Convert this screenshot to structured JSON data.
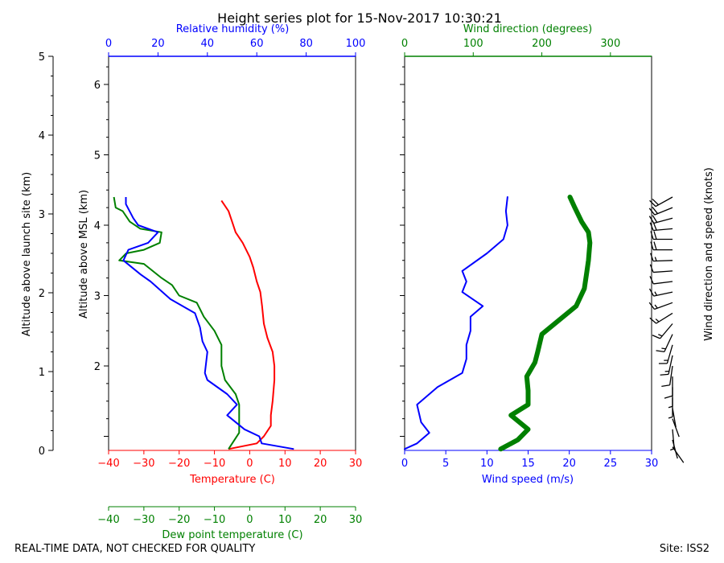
{
  "chart_data": {
    "type": "line",
    "title": "Height series plot for 15-Nov-2017 10:30:21",
    "site": "Site: ISS2",
    "disclaimer": "REAL-TIME DATA, NOT CHECKED FOR QUALITY",
    "colors": {
      "temperature": "#ff0000",
      "dewpoint": "#008000",
      "humidity": "#0000ff",
      "wind_speed": "#0000ff",
      "wind_direction": "#008000",
      "barbs": "#000000"
    },
    "left_panel": {
      "axes": {
        "temperature": {
          "label": "Temperature (C)",
          "range": [
            -40,
            30
          ],
          "ticks": [
            -40,
            -30,
            -20,
            -10,
            0,
            10,
            20,
            30
          ]
        },
        "dewpoint": {
          "label": "Dew point temperature (C)",
          "range": [
            -40,
            30
          ],
          "ticks": [
            -40,
            -30,
            -20,
            -10,
            0,
            10,
            20,
            30
          ]
        },
        "humidity": {
          "label": "Relative humidity (%)",
          "range": [
            0,
            100
          ],
          "ticks": [
            0,
            20,
            40,
            60,
            80,
            100
          ]
        },
        "altitude_msl": {
          "label": "Altitude above MSL (km)",
          "range": [
            0.8,
            6.4
          ],
          "ticks": [
            2,
            3,
            4,
            5,
            6
          ]
        },
        "altitude_site": {
          "label": "Altitude above launch site (km)",
          "range": [
            0,
            5
          ],
          "ticks": [
            0,
            1,
            2,
            3,
            4,
            5
          ]
        }
      },
      "series": [
        {
          "name": "Temperature",
          "x_axis": "temperature",
          "points": [
            [
              -8,
              4.35
            ],
            [
              -6,
              4.2
            ],
            [
              -5,
              4.05
            ],
            [
              -4,
              3.9
            ],
            [
              -2,
              3.75
            ],
            [
              0,
              3.55
            ],
            [
              1,
              3.4
            ],
            [
              2,
              3.2
            ],
            [
              3,
              3.05
            ],
            [
              3.5,
              2.85
            ],
            [
              4,
              2.6
            ],
            [
              5,
              2.4
            ],
            [
              6.5,
              2.2
            ],
            [
              7,
              2.0
            ],
            [
              7,
              1.8
            ],
            [
              6.5,
              1.5
            ],
            [
              6,
              1.3
            ],
            [
              6,
              1.15
            ],
            [
              4,
              1.0
            ],
            [
              2,
              0.9
            ],
            [
              -6,
              0.82
            ]
          ]
        },
        {
          "name": "Dew point",
          "x_axis": "dewpoint",
          "points": [
            [
              -38.5,
              4.4
            ],
            [
              -38,
              4.25
            ],
            [
              -36,
              4.2
            ],
            [
              -34,
              4.05
            ],
            [
              -31,
              3.95
            ],
            [
              -25,
              3.9
            ],
            [
              -25.5,
              3.75
            ],
            [
              -30,
              3.65
            ],
            [
              -35,
              3.6
            ],
            [
              -37,
              3.5
            ],
            [
              -30,
              3.45
            ],
            [
              -25,
              3.25
            ],
            [
              -22,
              3.15
            ],
            [
              -20,
              3.0
            ],
            [
              -15,
              2.9
            ],
            [
              -13,
              2.7
            ],
            [
              -10,
              2.5
            ],
            [
              -8,
              2.3
            ],
            [
              -8,
              2.0
            ],
            [
              -7,
              1.8
            ],
            [
              -4,
              1.6
            ],
            [
              -3,
              1.45
            ],
            [
              -3,
              1.2
            ],
            [
              -3,
              1.05
            ],
            [
              -6,
              0.82
            ]
          ]
        },
        {
          "name": "Relative humidity",
          "x_axis": "humidity",
          "points": [
            [
              7,
              4.4
            ],
            [
              7,
              4.3
            ],
            [
              10,
              4.1
            ],
            [
              12,
              4.0
            ],
            [
              20,
              3.9
            ],
            [
              16,
              3.75
            ],
            [
              8,
              3.65
            ],
            [
              6,
              3.5
            ],
            [
              13,
              3.3
            ],
            [
              17,
              3.2
            ],
            [
              25,
              2.95
            ],
            [
              35,
              2.75
            ],
            [
              37,
              2.55
            ],
            [
              38,
              2.35
            ],
            [
              40,
              2.2
            ],
            [
              39,
              1.9
            ],
            [
              40,
              1.8
            ],
            [
              48,
              1.6
            ],
            [
              52,
              1.45
            ],
            [
              48,
              1.3
            ],
            [
              55,
              1.1
            ],
            [
              61,
              1.0
            ],
            [
              62,
              0.9
            ],
            [
              75,
              0.82
            ]
          ]
        }
      ]
    },
    "right_panel": {
      "axes": {
        "wind_speed": {
          "label": "Wind speed (m/s)",
          "range": [
            0,
            30
          ],
          "ticks": [
            0,
            5,
            10,
            15,
            20,
            25,
            30
          ]
        },
        "wind_direction": {
          "label": "Wind direction (degrees)",
          "range": [
            0,
            360
          ],
          "ticks": [
            0,
            100,
            200,
            300
          ]
        },
        "barbs": {
          "label": "Wind direction and speed (knots)"
        }
      },
      "series": [
        {
          "name": "Wind speed",
          "x_axis": "wind_speed",
          "points": [
            [
              12.5,
              4.4
            ],
            [
              12.3,
              4.2
            ],
            [
              12.5,
              4.0
            ],
            [
              12,
              3.8
            ],
            [
              10,
              3.6
            ],
            [
              7,
              3.35
            ],
            [
              7.5,
              3.2
            ],
            [
              7,
              3.05
            ],
            [
              9.5,
              2.85
            ],
            [
              8,
              2.7
            ],
            [
              8,
              2.5
            ],
            [
              7.5,
              2.3
            ],
            [
              7.5,
              2.1
            ],
            [
              7,
              1.9
            ],
            [
              4,
              1.7
            ],
            [
              1.5,
              1.45
            ],
            [
              2,
              1.2
            ],
            [
              3,
              1.05
            ],
            [
              1.5,
              0.9
            ],
            [
              0,
              0.82
            ]
          ]
        },
        {
          "name": "Wind direction",
          "x_axis": "wind_direction",
          "points": [
            [
              241,
              4.4
            ],
            [
              248,
              4.25
            ],
            [
              258,
              4.05
            ],
            [
              268,
              3.9
            ],
            [
              270,
              3.75
            ],
            [
              268,
              3.5
            ],
            [
              265,
              3.3
            ],
            [
              262,
              3.1
            ],
            [
              250,
              2.85
            ],
            [
              225,
              2.65
            ],
            [
              200,
              2.45
            ],
            [
              194,
              2.2
            ],
            [
              190,
              2.05
            ],
            [
              178,
              1.85
            ],
            [
              180,
              1.65
            ],
            [
              180,
              1.45
            ],
            [
              155,
              1.3
            ],
            [
              180,
              1.1
            ],
            [
              165,
              0.95
            ],
            [
              140,
              0.82
            ]
          ]
        }
      ],
      "barbs": [
        {
          "alt": 4.4,
          "dir": 241,
          "kts": 24
        },
        {
          "alt": 4.25,
          "dir": 248,
          "kts": 24
        },
        {
          "alt": 4.1,
          "dir": 255,
          "kts": 24
        },
        {
          "alt": 3.95,
          "dir": 265,
          "kts": 24
        },
        {
          "alt": 3.8,
          "dir": 270,
          "kts": 22
        },
        {
          "alt": 3.65,
          "dir": 270,
          "kts": 20
        },
        {
          "alt": 3.5,
          "dir": 268,
          "kts": 17
        },
        {
          "alt": 3.35,
          "dir": 266,
          "kts": 14
        },
        {
          "alt": 3.2,
          "dir": 263,
          "kts": 14
        },
        {
          "alt": 3.05,
          "dir": 258,
          "kts": 15
        },
        {
          "alt": 2.9,
          "dir": 250,
          "kts": 18
        },
        {
          "alt": 2.75,
          "dir": 238,
          "kts": 16
        },
        {
          "alt": 2.6,
          "dir": 220,
          "kts": 16
        },
        {
          "alt": 2.45,
          "dir": 205,
          "kts": 15
        },
        {
          "alt": 2.3,
          "dir": 196,
          "kts": 15
        },
        {
          "alt": 2.15,
          "dir": 192,
          "kts": 15
        },
        {
          "alt": 2.0,
          "dir": 188,
          "kts": 14
        },
        {
          "alt": 1.85,
          "dir": 180,
          "kts": 14
        },
        {
          "alt": 1.7,
          "dir": 180,
          "kts": 9
        },
        {
          "alt": 1.55,
          "dir": 180,
          "kts": 5
        },
        {
          "alt": 1.4,
          "dir": 170,
          "kts": 4
        },
        {
          "alt": 1.25,
          "dir": 160,
          "kts": 4
        },
        {
          "alt": 1.1,
          "dir": 175,
          "kts": 5
        },
        {
          "alt": 0.95,
          "dir": 165,
          "kts": 4
        },
        {
          "alt": 0.85,
          "dir": 145,
          "kts": 2
        }
      ]
    }
  }
}
